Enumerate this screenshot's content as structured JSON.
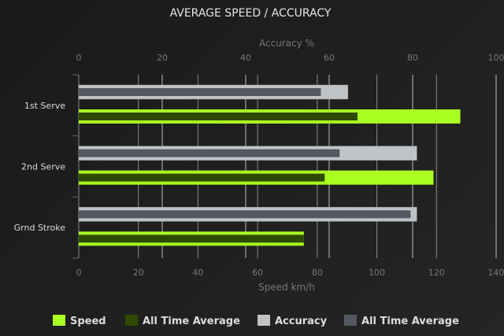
{
  "chart_data": {
    "type": "bar",
    "orientation": "horizontal",
    "title": "AVERAGE SPEED / ACCURACY",
    "categories": [
      "1st Serve",
      "2nd Serve",
      "Grnd Stroke"
    ],
    "x_bottom": {
      "label": "Speed km/h",
      "range": [
        0,
        140
      ],
      "ticks": [
        0,
        20,
        40,
        60,
        80,
        100,
        120,
        140
      ]
    },
    "x_top": {
      "label": "Accuracy %",
      "range": [
        0,
        100
      ],
      "ticks": [
        0,
        20,
        40,
        60,
        80,
        100
      ]
    },
    "grid": true,
    "legend_position": "bottom",
    "series": [
      {
        "name": "Speed",
        "axis": "bottom",
        "color": "#aaff22",
        "values": [
          128,
          119,
          75.5
        ]
      },
      {
        "name": "All Time Average",
        "axis": "bottom",
        "color": "#2e4a00",
        "values": [
          93.5,
          82.5,
          75.5
        ]
      },
      {
        "name": "Accuracy",
        "axis": "top",
        "color": "#bfc3c6",
        "values": [
          64.5,
          81,
          81
        ]
      },
      {
        "name": "All Time Average",
        "axis": "top",
        "color": "#545860",
        "values": [
          58,
          62.5,
          79.5
        ]
      }
    ]
  }
}
